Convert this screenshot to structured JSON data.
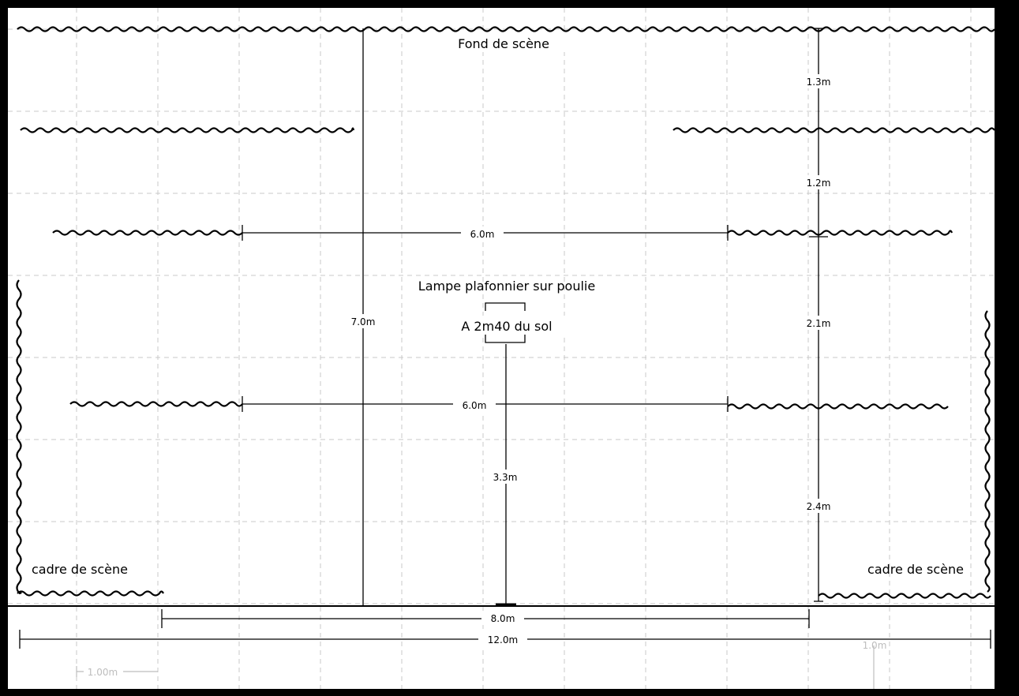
{
  "labels": {
    "backdrop": "Fond de scène",
    "lamp_title": "Lampe plafonnier sur poulie",
    "lamp_height": "A 2m40 du sol",
    "proscenium_left": "cadre de scène",
    "proscenium_right": "cadre de scène"
  },
  "dimensions": {
    "depth_total": "7.0m",
    "gap_1": "1.3m",
    "gap_2": "1.2m",
    "gap_3": "2.1m",
    "gap_4": "2.4m",
    "width_row_3": "6.0m",
    "width_row_4": "6.0m",
    "lamp_to_front": "3.3m",
    "opening_width": "8.0m",
    "total_width": "12.0m"
  },
  "scale": {
    "grid_unit": "1.00m",
    "right_ruler": "1.0m"
  },
  "colors": {
    "grid": "#c8c8c8",
    "line": "#000000",
    "scale": "#bdbdbd"
  }
}
